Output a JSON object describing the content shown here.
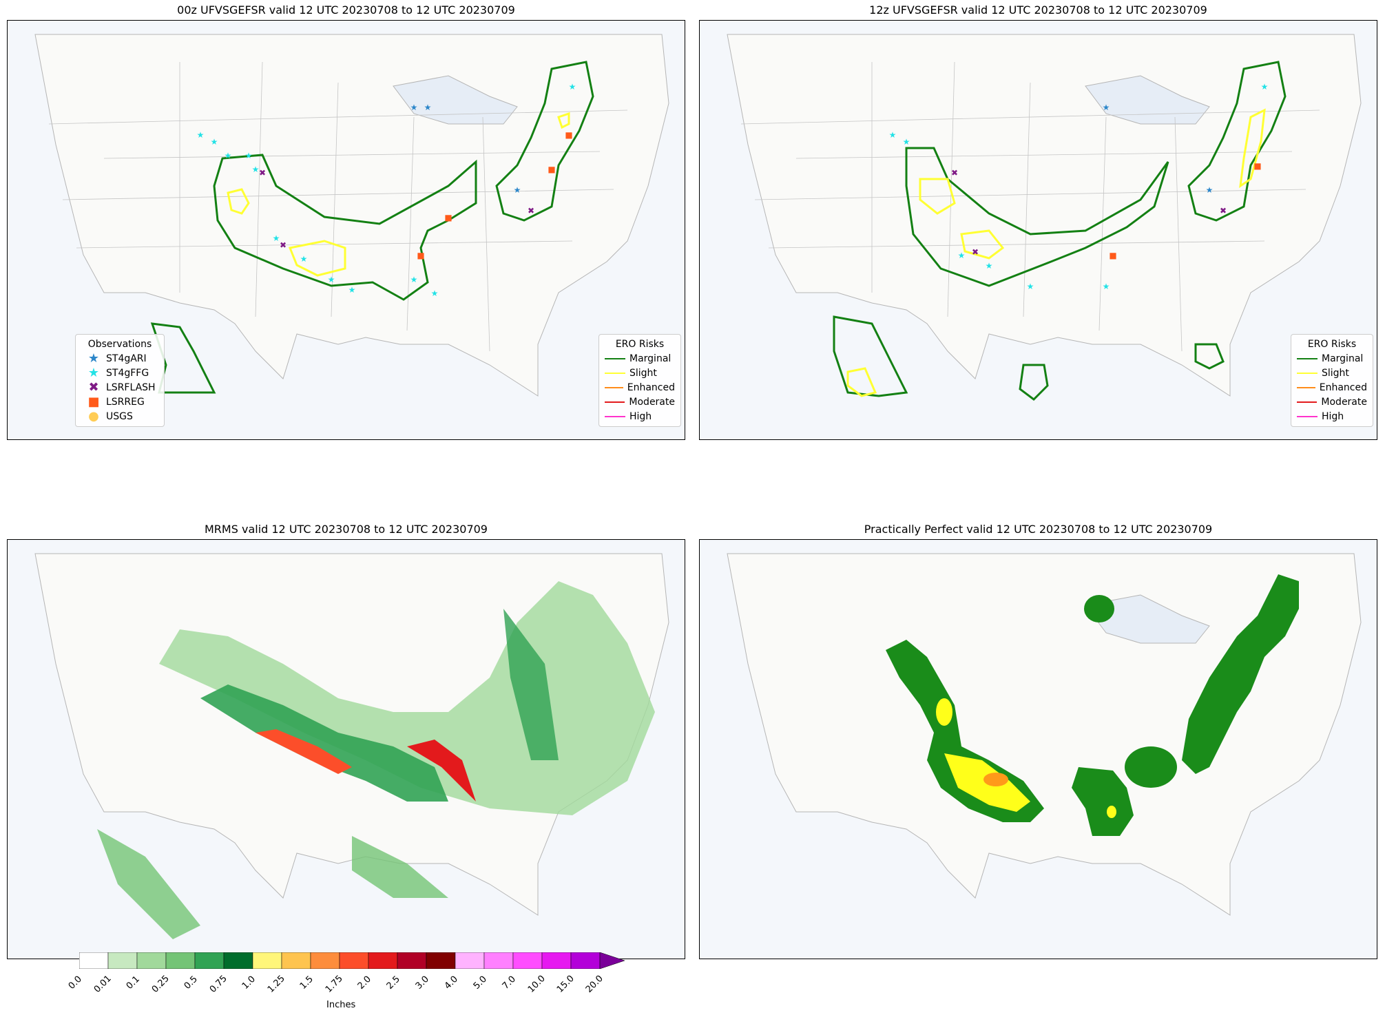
{
  "panels": [
    {
      "title": "00z UFVSGEFSR valid 12 UTC 20230708 to 12 UTC 20230709",
      "obs_legend": {
        "title": "Observations",
        "items": [
          {
            "label": "ST4gARI",
            "symbol": "star",
            "color": "#2c86c9"
          },
          {
            "label": "ST4gFFG",
            "symbol": "star",
            "color": "#22e2e6"
          },
          {
            "label": "LSRFLASH",
            "symbol": "x",
            "color": "#7f1a86"
          },
          {
            "label": "LSRREG",
            "symbol": "square",
            "color": "#ff5a1a"
          },
          {
            "label": "USGS",
            "symbol": "circle",
            "color": "#ffcc55"
          }
        ]
      },
      "risk_legend": {
        "title": "ERO Risks",
        "items": [
          {
            "label": "Marginal",
            "color": "#138013"
          },
          {
            "label": "Slight",
            "color": "#ffff33"
          },
          {
            "label": "Enhanced",
            "color": "#ff8c1a"
          },
          {
            "label": "Moderate",
            "color": "#e31a1c"
          },
          {
            "label": "High",
            "color": "#ff33cc"
          }
        ]
      }
    },
    {
      "title": "12z UFVSGEFSR valid 12 UTC 20230708 to 12 UTC 20230709",
      "risk_legend": {
        "title": "ERO Risks",
        "items": [
          {
            "label": "Marginal",
            "color": "#138013"
          },
          {
            "label": "Slight",
            "color": "#ffff33"
          },
          {
            "label": "Enhanced",
            "color": "#ff8c1a"
          },
          {
            "label": "Moderate",
            "color": "#e31a1c"
          },
          {
            "label": "High",
            "color": "#ff33cc"
          }
        ]
      }
    },
    {
      "title": "MRMS valid 12 UTC 20230708 to 12 UTC 20230709",
      "colorbar": {
        "label": "Inches",
        "ticks": [
          "0.0",
          "0.01",
          "0.1",
          "0.25",
          "0.5",
          "0.75",
          "1.0",
          "1.25",
          "1.5",
          "1.75",
          "2.0",
          "2.5",
          "3.0",
          "4.0",
          "5.0",
          "7.0",
          "10.0",
          "15.0",
          "20.0"
        ],
        "colors": [
          "#ffffff",
          "#c7e9c0",
          "#a1d99b",
          "#74c476",
          "#31a354",
          "#006d2c",
          "#fff67a",
          "#fec44f",
          "#fd8d3c",
          "#fc4e2a",
          "#e31a1c",
          "#b10026",
          "#800000",
          "#ffb3ff",
          "#ff80ff",
          "#ff4dff",
          "#e619f0",
          "#b300d9",
          "#7a0099"
        ]
      }
    },
    {
      "title": "Practically Perfect valid 12 UTC 20230708 to 12 UTC 20230709"
    }
  ],
  "colors": {
    "land": "#fafaf8",
    "water": "#f4f7fb",
    "lake": "#e6edf6",
    "marginal_fill": "#1a8c1a",
    "slight_fill": "#ffff1a",
    "enhanced_fill": "#ff9a1a"
  }
}
